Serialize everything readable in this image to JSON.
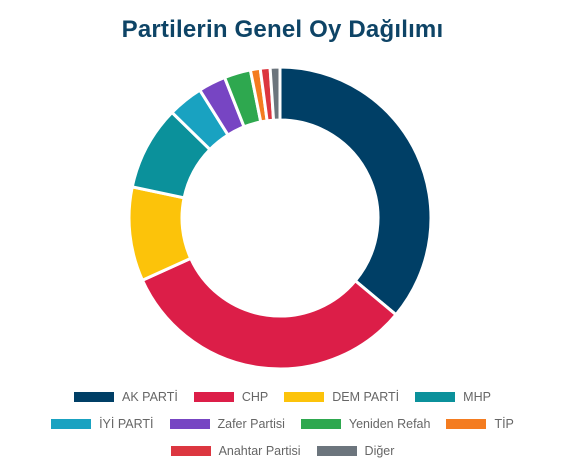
{
  "chart_data": {
    "type": "pie",
    "title": "Partilerin Genel Oy Dağılımı",
    "donut": true,
    "legend_position": "bottom",
    "categories": [
      "AK PARTİ",
      "CHP",
      "DEM PARTİ",
      "MHP",
      "İYİ PARTİ",
      "Zafer Partisi",
      "Yeniden Refah",
      "TİP",
      "Anahtar Partisi",
      "Diğer"
    ],
    "values": [
      34.4,
      30.7,
      9.6,
      8.6,
      3.6,
      2.8,
      2.7,
      1.0,
      1.0,
      1.0
    ],
    "colors": [
      "#003f66",
      "#dc1e48",
      "#fcc30a",
      "#0b919b",
      "#19a2c1",
      "#7745c3",
      "#2ea84f",
      "#f47c20",
      "#dc3640",
      "#6c757d"
    ]
  }
}
